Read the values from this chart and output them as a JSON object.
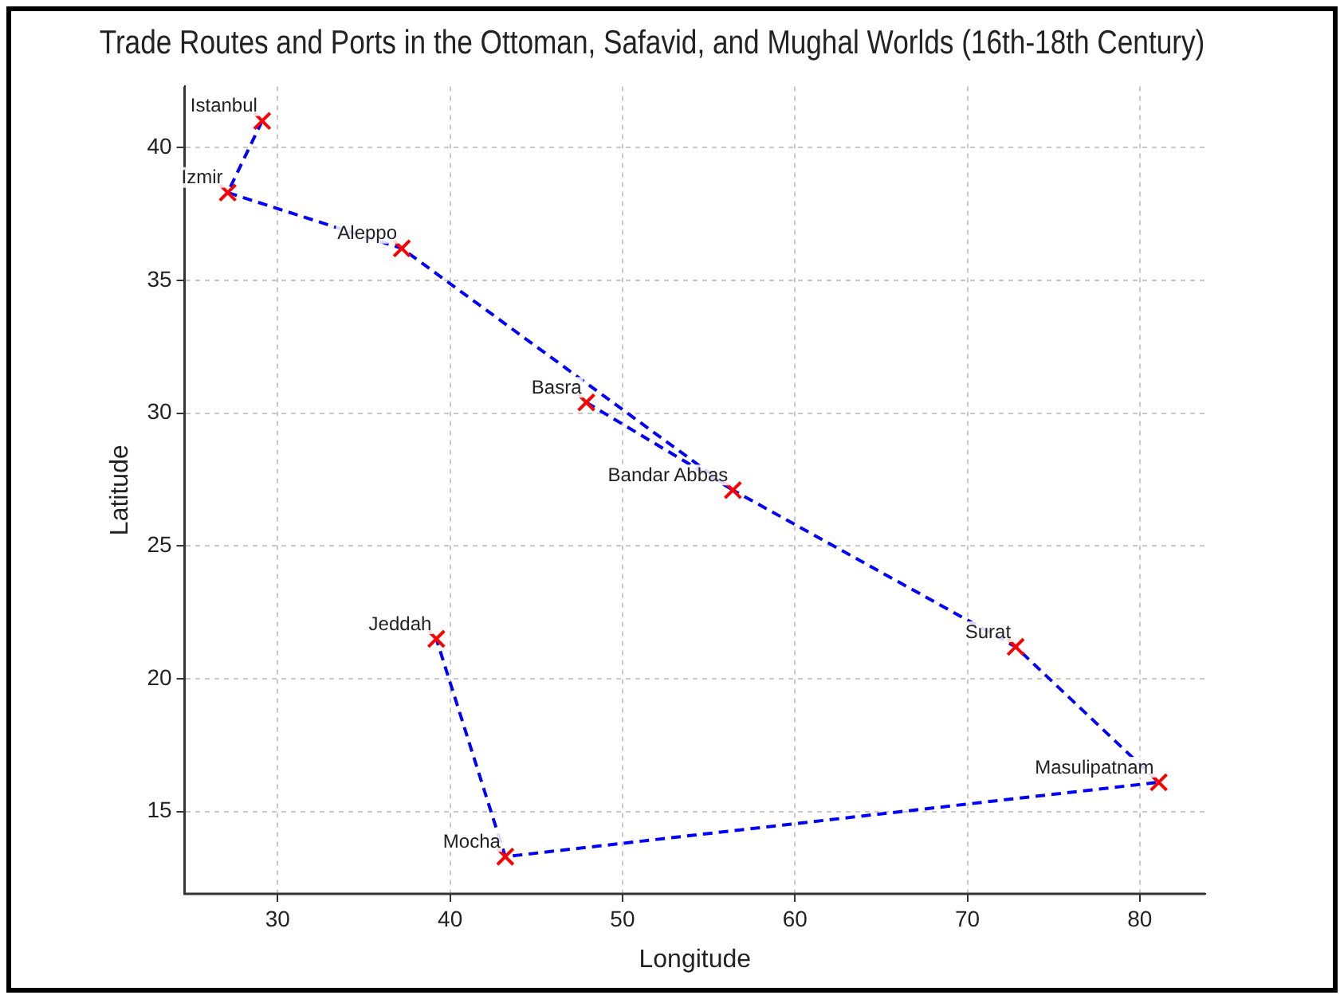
{
  "chart_data": {
    "type": "scatter",
    "title": "Trade Routes and Ports in the Ottoman, Safavid, and Mughal Worlds (16th-18th Century)",
    "xlabel": "Longitude",
    "ylabel": "Latitude",
    "series": [
      {
        "type": "line",
        "color": "#0000ff",
        "line_style": "dashed",
        "marker": "none",
        "x": [
          29.1,
          27.1,
          37.2,
          56.4,
          72.8,
          81.1,
          43.2,
          39.2
        ],
        "values": [
          41.0,
          38.3,
          36.2,
          27.1,
          21.2,
          16.1,
          13.3,
          21.5
        ]
      },
      {
        "type": "line",
        "color": "#0000ff",
        "line_style": "dashed",
        "marker": "none",
        "x": [
          47.9,
          56.4
        ],
        "values": [
          30.4,
          27.1
        ]
      },
      {
        "color": "#ff0000",
        "marker": "cross",
        "x": [
          29.1,
          27.1,
          37.2,
          47.9,
          56.4,
          72.8,
          81.1,
          43.2,
          39.2
        ],
        "values": [
          41.0,
          38.3,
          36.2,
          30.4,
          27.1,
          21.2,
          16.1,
          13.3,
          21.5
        ]
      }
    ],
    "annotations": [
      {
        "text": "Istanbul",
        "x": 29.1,
        "y": 41.0
      },
      {
        "text": "Izmir",
        "x": 27.1,
        "y": 38.3
      },
      {
        "text": "Aleppo",
        "x": 37.2,
        "y": 36.2
      },
      {
        "text": "Basra",
        "x": 47.9,
        "y": 30.4
      },
      {
        "text": "Bandar Abbas",
        "x": 56.4,
        "y": 27.1
      },
      {
        "text": "Surat",
        "x": 72.8,
        "y": 21.2
      },
      {
        "text": "Masulipatnam",
        "x": 81.1,
        "y": 16.1
      },
      {
        "text": "Mocha",
        "x": 43.2,
        "y": 13.3
      },
      {
        "text": "Jeddah",
        "x": 39.2,
        "y": 21.5
      }
    ],
    "xlim": [
      24.6,
      83.8
    ],
    "xticks": [
      30,
      40,
      50,
      60,
      70,
      80
    ],
    "ylim": [
      11.9,
      42.3
    ],
    "yticks": [
      15,
      20,
      25,
      30,
      35,
      40
    ],
    "grid": true,
    "legend": false
  }
}
